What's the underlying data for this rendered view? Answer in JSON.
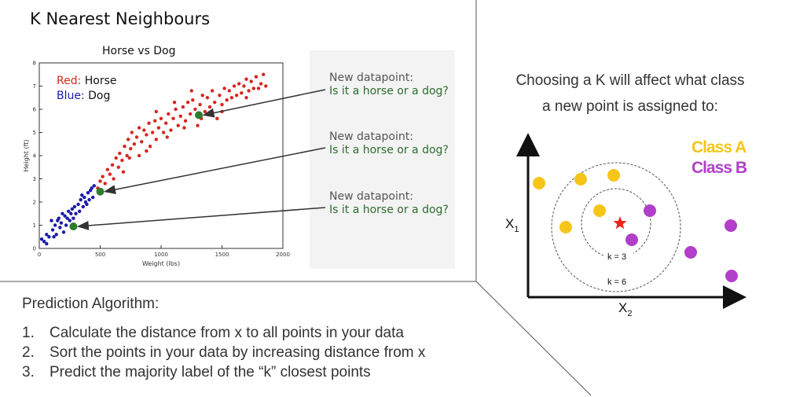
{
  "header": {
    "title": "K Nearest Neighbours"
  },
  "chart": {
    "title": "Horse vs Dog"
  },
  "chart_data": {
    "type": "scatter",
    "title": "Horse vs Dog",
    "xlabel": "Weight (lbs)",
    "ylabel": "Height (ft)",
    "xlim": [
      0,
      2000
    ],
    "ylim": [
      0,
      8
    ],
    "xticks": [
      "0",
      "500",
      "1000",
      "1500",
      "2000"
    ],
    "yticks": [
      "0",
      "1",
      "2",
      "3",
      "4",
      "5",
      "6",
      "7",
      "8"
    ],
    "legend": [
      {
        "label": "Red:",
        "text": "Horse",
        "color": "#d7261e"
      },
      {
        "label": "Blue:",
        "text": "Dog",
        "color": "#1a1aa8"
      }
    ],
    "series": [
      {
        "name": "Horse",
        "color": "#d7261e",
        "points": [
          [
            480,
            2.6
          ],
          [
            500,
            2.9
          ],
          [
            520,
            3.1
          ],
          [
            540,
            2.8
          ],
          [
            560,
            3.4
          ],
          [
            580,
            3.2
          ],
          [
            600,
            3.6
          ],
          [
            610,
            3.0
          ],
          [
            630,
            3.9
          ],
          [
            650,
            3.5
          ],
          [
            660,
            4.1
          ],
          [
            680,
            3.8
          ],
          [
            700,
            4.4
          ],
          [
            720,
            4.0
          ],
          [
            730,
            4.7
          ],
          [
            750,
            4.3
          ],
          [
            760,
            5.0
          ],
          [
            780,
            4.5
          ],
          [
            800,
            4.8
          ],
          [
            820,
            5.2
          ],
          [
            840,
            4.6
          ],
          [
            860,
            5.1
          ],
          [
            880,
            4.9
          ],
          [
            900,
            5.4
          ],
          [
            910,
            4.4
          ],
          [
            930,
            5.0
          ],
          [
            950,
            5.5
          ],
          [
            960,
            4.7
          ],
          [
            980,
            5.2
          ],
          [
            1000,
            5.6
          ],
          [
            1020,
            5.0
          ],
          [
            1040,
            5.4
          ],
          [
            1060,
            5.8
          ],
          [
            1080,
            5.1
          ],
          [
            1100,
            5.6
          ],
          [
            1120,
            6.0
          ],
          [
            1140,
            5.3
          ],
          [
            1160,
            5.7
          ],
          [
            1180,
            6.1
          ],
          [
            1200,
            5.5
          ],
          [
            1220,
            6.3
          ],
          [
            1240,
            5.8
          ],
          [
            1260,
            6.4
          ],
          [
            1280,
            6.0
          ],
          [
            1300,
            5.3
          ],
          [
            1320,
            6.2
          ],
          [
            1340,
            6.6
          ],
          [
            1360,
            5.9
          ],
          [
            1380,
            6.5
          ],
          [
            1400,
            6.1
          ],
          [
            1420,
            6.8
          ],
          [
            1440,
            6.3
          ],
          [
            1460,
            5.6
          ],
          [
            1480,
            6.6
          ],
          [
            1500,
            6.2
          ],
          [
            1520,
            6.9
          ],
          [
            1540,
            6.4
          ],
          [
            1560,
            6.8
          ],
          [
            1580,
            6.5
          ],
          [
            1600,
            7.0
          ],
          [
            1620,
            6.6
          ],
          [
            1640,
            7.1
          ],
          [
            1660,
            6.7
          ],
          [
            1680,
            7.0
          ],
          [
            1700,
            7.3
          ],
          [
            1720,
            6.8
          ],
          [
            1740,
            7.2
          ],
          [
            1760,
            6.9
          ],
          [
            1780,
            7.4
          ],
          [
            1800,
            6.9
          ],
          [
            1820,
            7.1
          ],
          [
            1840,
            7.5
          ],
          [
            1860,
            7.0
          ],
          [
            740,
            3.9
          ],
          [
            880,
            4.2
          ],
          [
            1050,
            4.8
          ],
          [
            1190,
            5.2
          ],
          [
            1330,
            5.6
          ],
          [
            960,
            5.9
          ],
          [
            1110,
            6.3
          ],
          [
            820,
            4.0
          ],
          [
            690,
            3.3
          ],
          [
            1250,
            6.8
          ],
          [
            1500,
            5.9
          ],
          [
            1700,
            6.5
          ]
        ]
      },
      {
        "name": "Dog",
        "color": "#1a1aa8",
        "points": [
          [
            20,
            0.4
          ],
          [
            40,
            0.3
          ],
          [
            60,
            0.6
          ],
          [
            80,
            0.5
          ],
          [
            100,
            1.2
          ],
          [
            110,
            0.8
          ],
          [
            130,
            1.0
          ],
          [
            140,
            0.6
          ],
          [
            160,
            1.3
          ],
          [
            170,
            0.9
          ],
          [
            180,
            1.1
          ],
          [
            200,
            0.7
          ],
          [
            210,
            1.4
          ],
          [
            220,
            1.0
          ],
          [
            240,
            1.6
          ],
          [
            250,
            1.2
          ],
          [
            260,
            1.5
          ],
          [
            280,
            1.3
          ],
          [
            290,
            1.8
          ],
          [
            300,
            1.5
          ],
          [
            320,
            1.9
          ],
          [
            330,
            1.6
          ],
          [
            340,
            2.1
          ],
          [
            360,
            1.8
          ],
          [
            370,
            2.2
          ],
          [
            380,
            2.0
          ],
          [
            400,
            2.4
          ],
          [
            410,
            2.1
          ],
          [
            420,
            2.5
          ],
          [
            440,
            2.2
          ],
          [
            450,
            2.7
          ],
          [
            120,
            0.5
          ],
          [
            60,
            0.2
          ],
          [
            150,
            1.2
          ],
          [
            190,
            1.5
          ],
          [
            230,
            1.3
          ],
          [
            270,
            1.7
          ],
          [
            350,
            2.3
          ],
          [
            390,
            1.9
          ],
          [
            430,
            2.6
          ]
        ]
      },
      {
        "name": "New datapoint",
        "color": "#2e7d2e",
        "points": [
          [
            1310,
            5.75
          ],
          [
            500,
            2.45
          ],
          [
            280,
            0.95
          ]
        ]
      }
    ],
    "annotations": [
      {
        "line1": "New datapoint:",
        "line2": "Is it a horse or a dog?"
      },
      {
        "line1": "New datapoint:",
        "line2": "Is it a horse or a dog?"
      },
      {
        "line1": "New datapoint:",
        "line2": "Is it a horse or a dog?"
      }
    ]
  },
  "algorithm": {
    "title": "Prediction Algorithm:",
    "steps": [
      {
        "num": "1.",
        "text": "Calculate the distance from x to all points in your data"
      },
      {
        "num": "2.",
        "text": "Sort the points in your data by increasing distance from x"
      },
      {
        "num": "3.",
        "text": "Predict the majority label of the “k” closest points"
      }
    ]
  },
  "knn_diagram": {
    "caption_line1": "Choosing a K will affect what class",
    "caption_line2": "a new point is assigned to:",
    "legend": [
      {
        "text": "Class A",
        "color": "#f5c518"
      },
      {
        "text": "Class B",
        "color": "#b13fc9"
      }
    ],
    "x_axis_label": "X",
    "x_axis_sub": "2",
    "y_axis_label": "X",
    "y_axis_sub": "1",
    "k_small_label": "k = 3",
    "k_large_label": "k = 6",
    "query_color": "#e8251b"
  }
}
